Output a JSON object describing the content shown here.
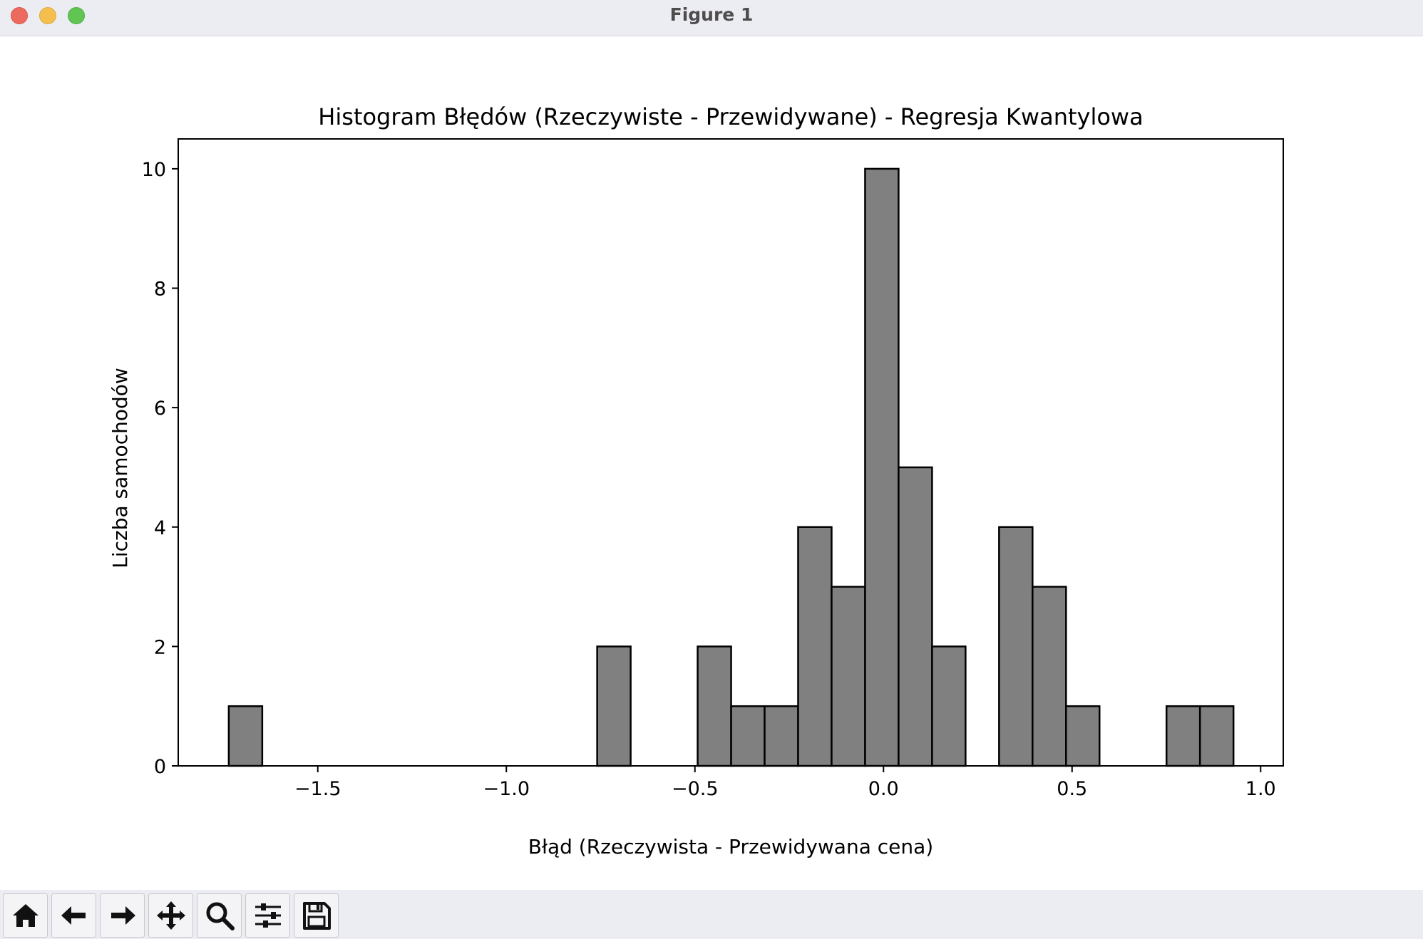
{
  "window": {
    "title": "Figure 1"
  },
  "toolbar": {
    "buttons": [
      {
        "name": "home-button",
        "icon": "home-icon"
      },
      {
        "name": "back-button",
        "icon": "arrow-left-icon"
      },
      {
        "name": "forward-button",
        "icon": "arrow-right-icon"
      },
      {
        "name": "pan-button",
        "icon": "move-icon"
      },
      {
        "name": "zoom-button",
        "icon": "magnifier-icon"
      },
      {
        "name": "configure-subplots-button",
        "icon": "sliders-icon"
      },
      {
        "name": "save-button",
        "icon": "floppy-disk-icon"
      }
    ]
  },
  "chart_data": {
    "type": "bar",
    "title": "Histogram Błędów (Rzeczywiste - Przewidywane) - Regresja Kwantylowa",
    "xlabel": "Błąd (Rzeczywista - Przewidywana cena)",
    "ylabel": "Liczba samochodów",
    "xlim": [
      -1.87,
      1.06
    ],
    "ylim": [
      0,
      10.5
    ],
    "x_ticks": [
      -1.5,
      -1.0,
      -0.5,
      0.0,
      0.5,
      1.0
    ],
    "x_tick_labels": [
      "−1.5",
      "−1.0",
      "−0.5",
      "0.0",
      "0.5",
      "1.0"
    ],
    "y_ticks": [
      0,
      2,
      4,
      6,
      8,
      10
    ],
    "y_tick_labels": [
      "0",
      "2",
      "4",
      "6",
      "8",
      "10"
    ],
    "bin_start": -1.736,
    "bin_width": 0.0888,
    "counts": [
      1,
      0,
      0,
      0,
      0,
      0,
      0,
      0,
      0,
      0,
      0,
      2,
      0,
      0,
      2,
      1,
      1,
      4,
      3,
      10,
      5,
      2,
      0,
      4,
      3,
      1,
      0,
      0,
      1,
      1
    ],
    "bar_color": "#808080",
    "edge_color": "#000000",
    "grid": false,
    "legend": "none"
  }
}
